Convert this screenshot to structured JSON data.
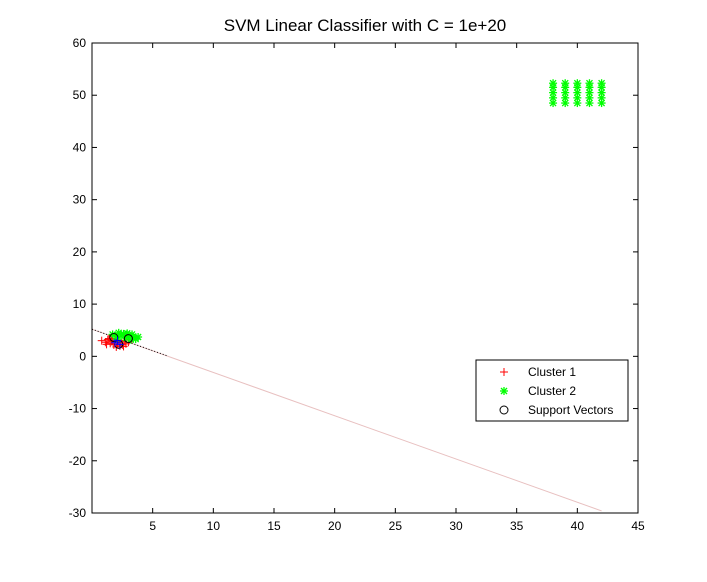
{
  "chart_data": {
    "type": "scatter",
    "title": "SVM Linear Classifier with C = 1e+20",
    "xlabel": "",
    "ylabel": "",
    "xlim": [
      0,
      45
    ],
    "ylim": [
      -30,
      60
    ],
    "xticks": [
      5,
      10,
      15,
      20,
      25,
      30,
      35,
      40,
      45
    ],
    "yticks": [
      -30,
      -20,
      -10,
      0,
      10,
      20,
      30,
      40,
      50,
      60
    ],
    "grid": false,
    "legend_position": "inside-right",
    "series": [
      {
        "name": "Cluster 1",
        "marker": "plus",
        "color": "#ff0000",
        "points": [
          [
            0.8,
            3.0
          ],
          [
            1.1,
            2.7
          ],
          [
            1.3,
            3.2
          ],
          [
            1.5,
            2.5
          ],
          [
            1.6,
            3.0
          ],
          [
            1.8,
            2.2
          ],
          [
            1.9,
            3.4
          ],
          [
            2.0,
            1.8
          ],
          [
            2.1,
            2.6
          ],
          [
            2.2,
            3.0
          ],
          [
            2.3,
            2.0
          ],
          [
            2.4,
            2.8
          ],
          [
            2.5,
            2.2
          ],
          [
            2.7,
            3.1
          ],
          [
            2.8,
            2.4
          ],
          [
            3.0,
            2.7
          ],
          [
            1.2,
            2.3
          ],
          [
            1.7,
            2.9
          ],
          [
            2.6,
            1.9
          ],
          [
            1.4,
            3.4
          ]
        ]
      },
      {
        "name": "Cluster 2",
        "marker": "asterisk",
        "color": "#00ff00",
        "points": [
          [
            1.7,
            4.2
          ],
          [
            2.0,
            3.7
          ],
          [
            2.2,
            4.5
          ],
          [
            2.4,
            3.9
          ],
          [
            2.6,
            4.3
          ],
          [
            2.8,
            3.5
          ],
          [
            3.0,
            4.0
          ],
          [
            3.2,
            3.2
          ],
          [
            3.4,
            3.8
          ],
          [
            3.6,
            3.3
          ],
          [
            3.8,
            3.7
          ],
          [
            2.9,
            4.4
          ],
          [
            2.1,
            3.3
          ],
          [
            3.3,
            4.2
          ],
          [
            38,
            48.5
          ],
          [
            38,
            49.5
          ],
          [
            38,
            50.5
          ],
          [
            38,
            51.5
          ],
          [
            38,
            52.3
          ],
          [
            39,
            48.5
          ],
          [
            39,
            49.5
          ],
          [
            39,
            50.5
          ],
          [
            39,
            51.5
          ],
          [
            39,
            52.3
          ],
          [
            40,
            48.5
          ],
          [
            40,
            49.5
          ],
          [
            40,
            50.5
          ],
          [
            40,
            51.5
          ],
          [
            40,
            52.3
          ],
          [
            41,
            48.5
          ],
          [
            41,
            49.5
          ],
          [
            41,
            50.5
          ],
          [
            41,
            51.5
          ],
          [
            41,
            52.3
          ],
          [
            42,
            48.5
          ],
          [
            42,
            49.5
          ],
          [
            42,
            50.5
          ],
          [
            42,
            51.5
          ],
          [
            42,
            52.3
          ]
        ]
      },
      {
        "name": "Support Vectors",
        "marker": "circle",
        "color": "#000000",
        "points": [
          [
            1.8,
            3.6
          ],
          [
            3.0,
            3.4
          ],
          [
            2.2,
            2.3
          ]
        ]
      }
    ],
    "extra_marks": [
      {
        "marker": "plus",
        "color": "#0000ff",
        "points": [
          [
            1.9,
            2.6
          ],
          [
            2.3,
            2.3
          ],
          [
            2.1,
            3.0
          ]
        ]
      }
    ],
    "decision_boundary": [
      [
        0,
        5.2
      ],
      [
        42,
        -29.6
      ]
    ],
    "decision_boundary_color": "#e8c0c0",
    "margin_line": [
      [
        0,
        5.2
      ],
      [
        6.2,
        0.1
      ]
    ],
    "margin_line_color": "#000000"
  }
}
